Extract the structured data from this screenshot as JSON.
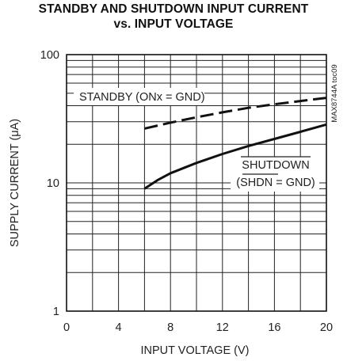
{
  "chart_data": {
    "type": "line",
    "title": "STANDBY AND SHUTDOWN INPUT CURRENT",
    "subtitle": "vs. INPUT VOLTAGE",
    "xlabel": "INPUT VOLTAGE (V)",
    "ylabel": "SUPPLY CURRENT (μA)",
    "part_tag": "MAX8744A toc09",
    "xlim": [
      0,
      20
    ],
    "ylim": [
      1,
      100
    ],
    "yscale": "log",
    "grid": true,
    "x_ticks": [
      "0",
      "4",
      "8",
      "12",
      "16",
      "20"
    ],
    "y_ticks": [
      "1",
      "10",
      "100"
    ],
    "series": [
      {
        "name": "STANDBY (ONx = GND)",
        "style": "dashed",
        "x": [
          6,
          8,
          10,
          12,
          14,
          16,
          18,
          20
        ],
        "y": [
          26.5,
          29.5,
          32.5,
          35.5,
          38.5,
          41,
          43.5,
          46
        ]
      },
      {
        "name": "SHUTDOWN (SHDN = GND)",
        "style": "solid",
        "x": [
          6,
          7,
          8,
          10,
          12,
          14,
          16,
          18,
          20
        ],
        "y": [
          9,
          10.5,
          11.9,
          14.3,
          16.8,
          19.4,
          22,
          25,
          28.5
        ]
      }
    ]
  }
}
